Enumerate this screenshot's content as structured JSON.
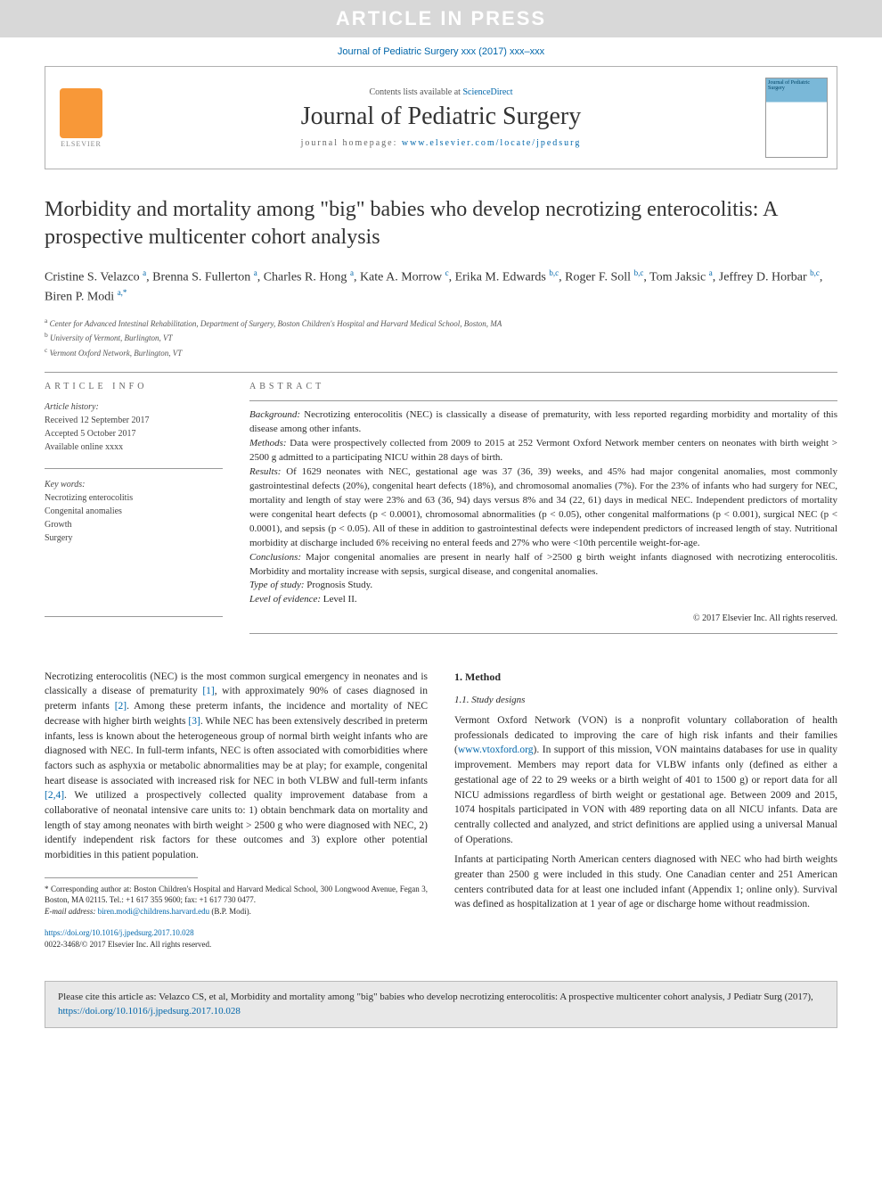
{
  "banner": "ARTICLE IN PRESS",
  "journal_ref": "Journal of Pediatric Surgery xxx (2017) xxx–xxx",
  "header": {
    "contents_prefix": "Contents lists available at ",
    "contents_link": "ScienceDirect",
    "journal": "Journal of Pediatric Surgery",
    "homepage_prefix": "journal homepage: ",
    "homepage_url": "www.elsevier.com/locate/jpedsurg",
    "elsevier": "ELSEVIER",
    "cover_text": "Journal of Pediatric Surgery"
  },
  "title": "Morbidity and mortality among \"big\" babies who develop necrotizing enterocolitis: A prospective multicenter cohort analysis",
  "authors_html": "Cristine S. Velazco <sup>a</sup>, Brenna S. Fullerton <sup>a</sup>, Charles R. Hong <sup>a</sup>, Kate A. Morrow <sup>c</sup>, Erika M. Edwards <sup>b,c</sup>, Roger F. Soll <sup>b,c</sup>, Tom Jaksic <sup>a</sup>, Jeffrey D. Horbar <sup>b,c</sup>, Biren P. Modi <sup>a,*</sup>",
  "affiliations": {
    "a": "Center for Advanced Intestinal Rehabilitation, Department of Surgery, Boston Children's Hospital and Harvard Medical School, Boston, MA",
    "b": "University of Vermont, Burlington, VT",
    "c": "Vermont Oxford Network, Burlington, VT"
  },
  "article_info": {
    "head": "ARTICLE INFO",
    "history_lbl": "Article history:",
    "received": "Received 12 September 2017",
    "accepted": "Accepted 5 October 2017",
    "online": "Available online xxxx",
    "kw_lbl": "Key words:",
    "kw1": "Necrotizing enterocolitis",
    "kw2": "Congenital anomalies",
    "kw3": "Growth",
    "kw4": "Surgery"
  },
  "abstract": {
    "head": "ABSTRACT",
    "background_lbl": "Background:",
    "background": " Necrotizing enterocolitis (NEC) is classically a disease of prematurity, with less reported regarding morbidity and mortality of this disease among other infants.",
    "methods_lbl": "Methods:",
    "methods": " Data were prospectively collected from 2009 to 2015 at 252 Vermont Oxford Network member centers on neonates with birth weight > 2500 g admitted to a participating NICU within 28 days of birth.",
    "results_lbl": "Results:",
    "results": " Of 1629 neonates with NEC, gestational age was 37 (36, 39) weeks, and 45% had major congenital anomalies, most commonly gastrointestinal defects (20%), congenital heart defects (18%), and chromosomal anomalies (7%). For the 23% of infants who had surgery for NEC, mortality and length of stay were 23% and 63 (36, 94) days versus 8% and 34 (22, 61) days in medical NEC. Independent predictors of mortality were congenital heart defects (p < 0.0001), chromosomal abnormalities (p < 0.05), other congenital malformations (p < 0.001), surgical NEC (p < 0.0001), and sepsis (p < 0.05). All of these in addition to gastrointestinal defects were independent predictors of increased length of stay. Nutritional morbidity at discharge included 6% receiving no enteral feeds and 27% who were <10th percentile weight-for-age.",
    "conclusions_lbl": "Conclusions:",
    "conclusions": " Major congenital anomalies are present in nearly half of >2500 g birth weight infants diagnosed with necrotizing enterocolitis. Morbidity and mortality increase with sepsis, surgical disease, and congenital anomalies.",
    "type_lbl": "Type of study:",
    "type": " Prognosis Study.",
    "level_lbl": "Level of evidence:",
    "level": " Level II.",
    "copyright": "© 2017 Elsevier Inc. All rights reserved."
  },
  "body": {
    "intro": "Necrotizing enterocolitis (NEC) is the most common surgical emergency in neonates and is classically a disease of prematurity [1], with approximately 90% of cases diagnosed in preterm infants [2]. Among these preterm infants, the incidence and mortality of NEC decrease with higher birth weights [3]. While NEC has been extensively described in preterm infants, less is known about the heterogeneous group of normal birth weight infants who are diagnosed with NEC. In full-term infants, NEC is often associated with comorbidities where factors such as asphyxia or metabolic abnormalities may be at play; for example, congenital heart disease is associated with increased risk for NEC in both VLBW and full-term infants [2,4]. We utilized a prospectively collected quality improvement database from a collaborative of neonatal intensive care units to: 1) obtain benchmark data on mortality and length of stay among neonates with birth weight > 2500 g who were diagnosed with NEC, 2) identify independent risk factors for these outcomes and 3) explore other potential morbidities in this patient population.",
    "method_head": "1. Method",
    "design_head": "1.1. Study designs",
    "design_p1": "Vermont Oxford Network (VON) is a nonprofit voluntary collaboration of health professionals dedicated to improving the care of high risk infants and their families (www.vtoxford.org). In support of this mission, VON maintains databases for use in quality improvement. Members may report data for VLBW infants only (defined as either a gestational age of 22 to 29 weeks or a birth weight of 401 to 1500 g) or report data for all NICU admissions regardless of birth weight or gestational age. Between 2009 and 2015, 1074 hospitals participated in VON with 489 reporting data on all NICU infants. Data are centrally collected and analyzed, and strict definitions are applied using a universal Manual of Operations.",
    "design_p2": "Infants at participating North American centers diagnosed with NEC who had birth weights greater than 2500 g were included in this study. One Canadian center and 251 American centers contributed data for at least one included infant (Appendix 1; online only). Survival was defined as hospitalization at 1 year of age or discharge home without readmission."
  },
  "footnote": {
    "corr": "* Corresponding author at: Boston Children's Hospital and Harvard Medical School, 300 Longwood Avenue, Fegan 3, Boston, MA 02115. Tel.: +1 617 355 9600; fax: +1 617 730 0477.",
    "email_lbl": "E-mail address:",
    "email": "biren.modi@childrens.harvard.edu",
    "email_who": " (B.P. Modi)."
  },
  "doi": {
    "url": "https://doi.org/10.1016/j.jpedsurg.2017.10.028",
    "issn": "0022-3468/© 2017 Elsevier Inc. All rights reserved."
  },
  "cite": {
    "text": "Please cite this article as: Velazco CS, et al, Morbidity and mortality among \"big\" babies who develop necrotizing enterocolitis: A prospective multicenter cohort analysis, J Pediatr Surg (2017), ",
    "url": "https://doi.org/10.1016/j.jpedsurg.2017.10.028"
  }
}
